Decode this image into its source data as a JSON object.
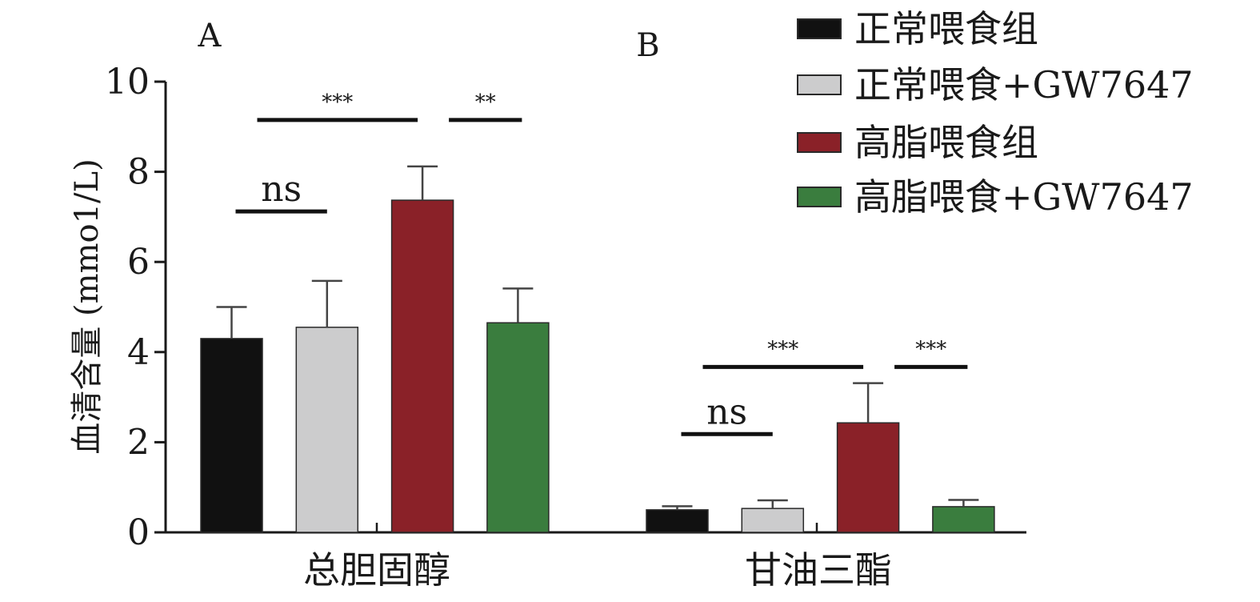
{
  "chart_data": {
    "type": "bar",
    "ylabel": "血清含量 (mmo1/L)",
    "ylim": [
      0,
      10
    ],
    "yticks": [
      "0",
      "2",
      "4",
      "6",
      "8",
      "10"
    ],
    "grid": false,
    "legend_position": "top-right",
    "panel_labels": [
      "A",
      "B"
    ],
    "categories": [
      "总胆固醇",
      "甘油三酯"
    ],
    "series": [
      {
        "name": "正常喂食组",
        "color": "#111111",
        "values": [
          4.3,
          0.5
        ],
        "errors": [
          0.7,
          0.08
        ]
      },
      {
        "name": "正常喂食+GW7647",
        "color": "#cccccd",
        "values": [
          4.55,
          0.53
        ],
        "errors": [
          1.03,
          0.18
        ]
      },
      {
        "name": "高脂喂食组",
        "color": "#8a2128",
        "values": [
          7.37,
          2.43
        ],
        "errors": [
          0.75,
          0.88
        ]
      },
      {
        "name": "高脂喂食+GW7647",
        "color": "#3a7d3e",
        "values": [
          4.65,
          0.57
        ],
        "errors": [
          0.76,
          0.15
        ]
      }
    ],
    "significance": [
      {
        "category": 0,
        "from_series": 0,
        "to_series": 1,
        "y": 7.12,
        "label": "ns"
      },
      {
        "category": 0,
        "from_series": 0,
        "to_series": 2,
        "y": 9.15,
        "label": "***"
      },
      {
        "category": 0,
        "from_series": 2,
        "to_series": 3,
        "y": 9.15,
        "label": "**"
      },
      {
        "category": 1,
        "from_series": 0,
        "to_series": 1,
        "y": 2.18,
        "label": "ns"
      },
      {
        "category": 1,
        "from_series": 0,
        "to_series": 2,
        "y": 3.67,
        "label": "***"
      },
      {
        "category": 1,
        "from_series": 2,
        "to_series": 3,
        "y": 3.67,
        "label": "***"
      }
    ]
  }
}
